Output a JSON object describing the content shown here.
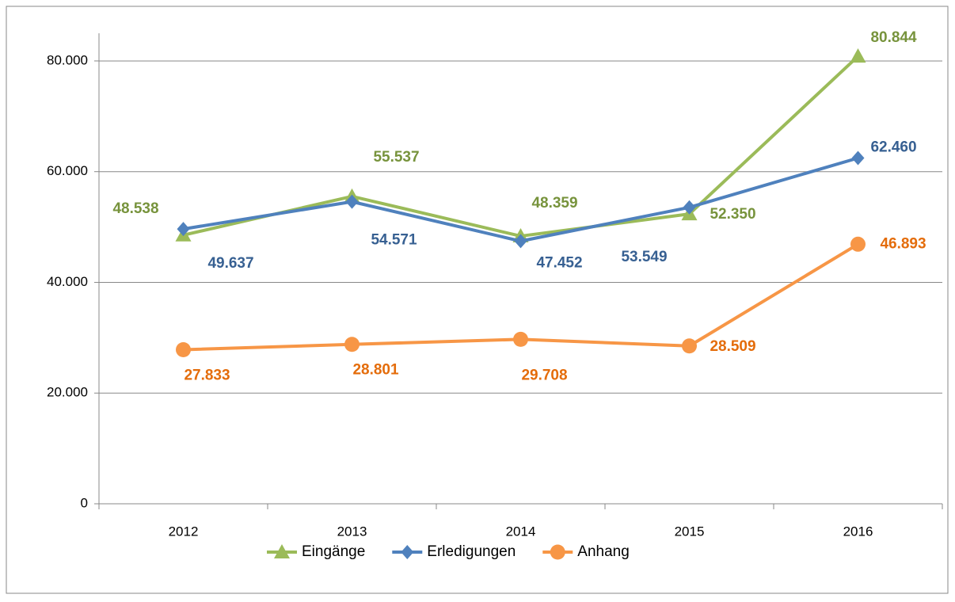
{
  "chart_data": {
    "type": "line",
    "categories": [
      "2012",
      "2013",
      "2014",
      "2015",
      "2016"
    ],
    "series": [
      {
        "name": "Eingänge",
        "color": "#9BBB59",
        "label_color": "#77933C",
        "marker": "triangle",
        "values": [
          48538,
          55537,
          48359,
          52350,
          80844
        ],
        "value_labels": [
          "48.538",
          "55.537",
          "48.359",
          "52.350",
          "80.844"
        ]
      },
      {
        "name": "Erledigungen",
        "color": "#4F81BD",
        "label_color": "#376092",
        "marker": "diamond",
        "values": [
          49637,
          54571,
          47452,
          53549,
          62460
        ],
        "value_labels": [
          "49.637",
          "54.571",
          "47.452",
          "53.549",
          "62.460"
        ]
      },
      {
        "name": "Anhang",
        "color": "#F79646",
        "label_color": "#E46C0A",
        "marker": "circle",
        "values": [
          27833,
          28801,
          29708,
          28509,
          46893
        ],
        "value_labels": [
          "27.833",
          "28.801",
          "29.708",
          "28.509",
          "46.893"
        ]
      }
    ],
    "ylim": [
      0,
      85000
    ],
    "yticks": [
      0,
      {
        "value": 20000,
        "label": "20.000"
      },
      {
        "value": 40000,
        "label": "40.000"
      },
      {
        "value": 60000,
        "label": "60.000"
      },
      {
        "value": 80000,
        "label": "80.000"
      }
    ],
    "grid": true,
    "legend": "bottom"
  }
}
